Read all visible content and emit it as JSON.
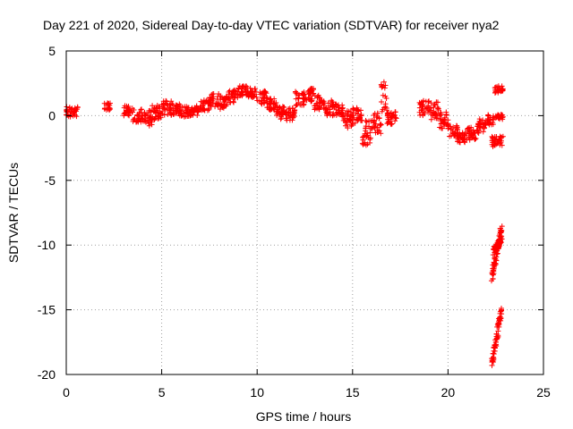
{
  "chart_data": {
    "type": "scatter",
    "title": "Day 221 of 2020, Sidereal Day-to-day VTEC variation (SDTVAR) for receiver nya2",
    "xlabel": "GPS time / hours",
    "ylabel": "SDTVAR / TECUs",
    "xlim": [
      0,
      25
    ],
    "ylim": [
      -20,
      5
    ],
    "xticks": [
      0,
      5,
      10,
      15,
      20,
      25
    ],
    "yticks": [
      5,
      0,
      -5,
      -10,
      -15,
      -20
    ],
    "grid": true,
    "marker": "+",
    "marker_color": "#ff0000",
    "segments": [
      {
        "x0": 0.0,
        "x1": 0.6,
        "y": 0.3,
        "spread": 0.4
      },
      {
        "x0": 2.0,
        "x1": 2.3,
        "y": 0.7,
        "spread": 0.3
      },
      {
        "x0": 3.0,
        "x1": 3.5,
        "y": 0.4,
        "spread": 0.4
      },
      {
        "x0": 3.5,
        "x1": 4.0,
        "y": 0.0,
        "spread": 0.5
      },
      {
        "x0": 4.0,
        "x1": 4.5,
        "y": -0.2,
        "spread": 0.6
      },
      {
        "x0": 4.5,
        "x1": 5.0,
        "y": 0.2,
        "spread": 0.6
      },
      {
        "x0": 5.0,
        "x1": 5.5,
        "y": 0.6,
        "spread": 0.6
      },
      {
        "x0": 5.5,
        "x1": 6.0,
        "y": 0.5,
        "spread": 0.5
      },
      {
        "x0": 6.0,
        "x1": 6.5,
        "y": 0.3,
        "spread": 0.4
      },
      {
        "x0": 6.5,
        "x1": 7.0,
        "y": 0.4,
        "spread": 0.4
      },
      {
        "x0": 7.0,
        "x1": 7.5,
        "y": 0.8,
        "spread": 0.4
      },
      {
        "x0": 7.5,
        "x1": 8.0,
        "y": 1.2,
        "spread": 0.5
      },
      {
        "x0": 8.0,
        "x1": 8.5,
        "y": 1.0,
        "spread": 0.5
      },
      {
        "x0": 8.5,
        "x1": 9.0,
        "y": 1.5,
        "spread": 0.5
      },
      {
        "x0": 9.0,
        "x1": 9.5,
        "y": 1.9,
        "spread": 0.4
      },
      {
        "x0": 9.5,
        "x1": 10.0,
        "y": 1.8,
        "spread": 0.4
      },
      {
        "x0": 10.0,
        "x1": 10.5,
        "y": 1.4,
        "spread": 0.5
      },
      {
        "x0": 10.5,
        "x1": 11.0,
        "y": 0.9,
        "spread": 0.5
      },
      {
        "x0": 11.0,
        "x1": 11.5,
        "y": 0.3,
        "spread": 0.6
      },
      {
        "x0": 11.5,
        "x1": 12.0,
        "y": 0.0,
        "spread": 0.6
      },
      {
        "x0": 12.0,
        "x1": 12.5,
        "y": 1.3,
        "spread": 0.6
      },
      {
        "x0": 12.5,
        "x1": 13.0,
        "y": 1.6,
        "spread": 0.5
      },
      {
        "x0": 13.0,
        "x1": 13.5,
        "y": 1.0,
        "spread": 0.6
      },
      {
        "x0": 13.5,
        "x1": 14.0,
        "y": 0.6,
        "spread": 0.6
      },
      {
        "x0": 14.0,
        "x1": 14.5,
        "y": 0.4,
        "spread": 0.5
      },
      {
        "x0": 14.5,
        "x1": 15.0,
        "y": -0.3,
        "spread": 0.7
      },
      {
        "x0": 15.0,
        "x1": 15.5,
        "y": 0.0,
        "spread": 0.6
      },
      {
        "x0": 15.5,
        "x1": 16.0,
        "y": -1.3,
        "spread": 1.0
      },
      {
        "x0": 16.0,
        "x1": 16.5,
        "y": -0.6,
        "spread": 0.8
      },
      {
        "x0": 16.5,
        "x1": 16.8,
        "y": 1.3,
        "spread": 1.3
      },
      {
        "x0": 16.8,
        "x1": 17.3,
        "y": -0.2,
        "spread": 0.5
      },
      {
        "x0": 18.5,
        "x1": 19.0,
        "y": 0.6,
        "spread": 0.6
      },
      {
        "x0": 19.0,
        "x1": 19.5,
        "y": 0.4,
        "spread": 0.7
      },
      {
        "x0": 19.5,
        "x1": 20.0,
        "y": -0.4,
        "spread": 0.7
      },
      {
        "x0": 20.0,
        "x1": 20.5,
        "y": -1.2,
        "spread": 0.5
      },
      {
        "x0": 20.5,
        "x1": 21.0,
        "y": -1.7,
        "spread": 0.4
      },
      {
        "x0": 21.0,
        "x1": 21.5,
        "y": -1.4,
        "spread": 0.5
      },
      {
        "x0": 21.5,
        "x1": 22.0,
        "y": -0.8,
        "spread": 0.6
      },
      {
        "x0": 22.0,
        "x1": 22.4,
        "y": -0.3,
        "spread": 0.4
      },
      {
        "x0": 22.4,
        "x1": 22.9,
        "y": 2.0,
        "spread": 0.3
      },
      {
        "x0": 22.3,
        "x1": 22.9,
        "y": -2.0,
        "spread": 0.4
      },
      {
        "x0": 22.5,
        "x1": 22.9,
        "y": -0.1,
        "spread": 0.2
      }
    ],
    "ramps": [
      {
        "x0": 22.3,
        "x1": 22.8,
        "y0": -12.5,
        "y1": -8.8,
        "spread": 0.4
      },
      {
        "x0": 22.4,
        "x1": 22.8,
        "y0": -10.5,
        "y1": -9.5,
        "spread": 0.3
      },
      {
        "x0": 22.3,
        "x1": 22.8,
        "y0": -19.2,
        "y1": -15.0,
        "spread": 0.4
      }
    ]
  }
}
